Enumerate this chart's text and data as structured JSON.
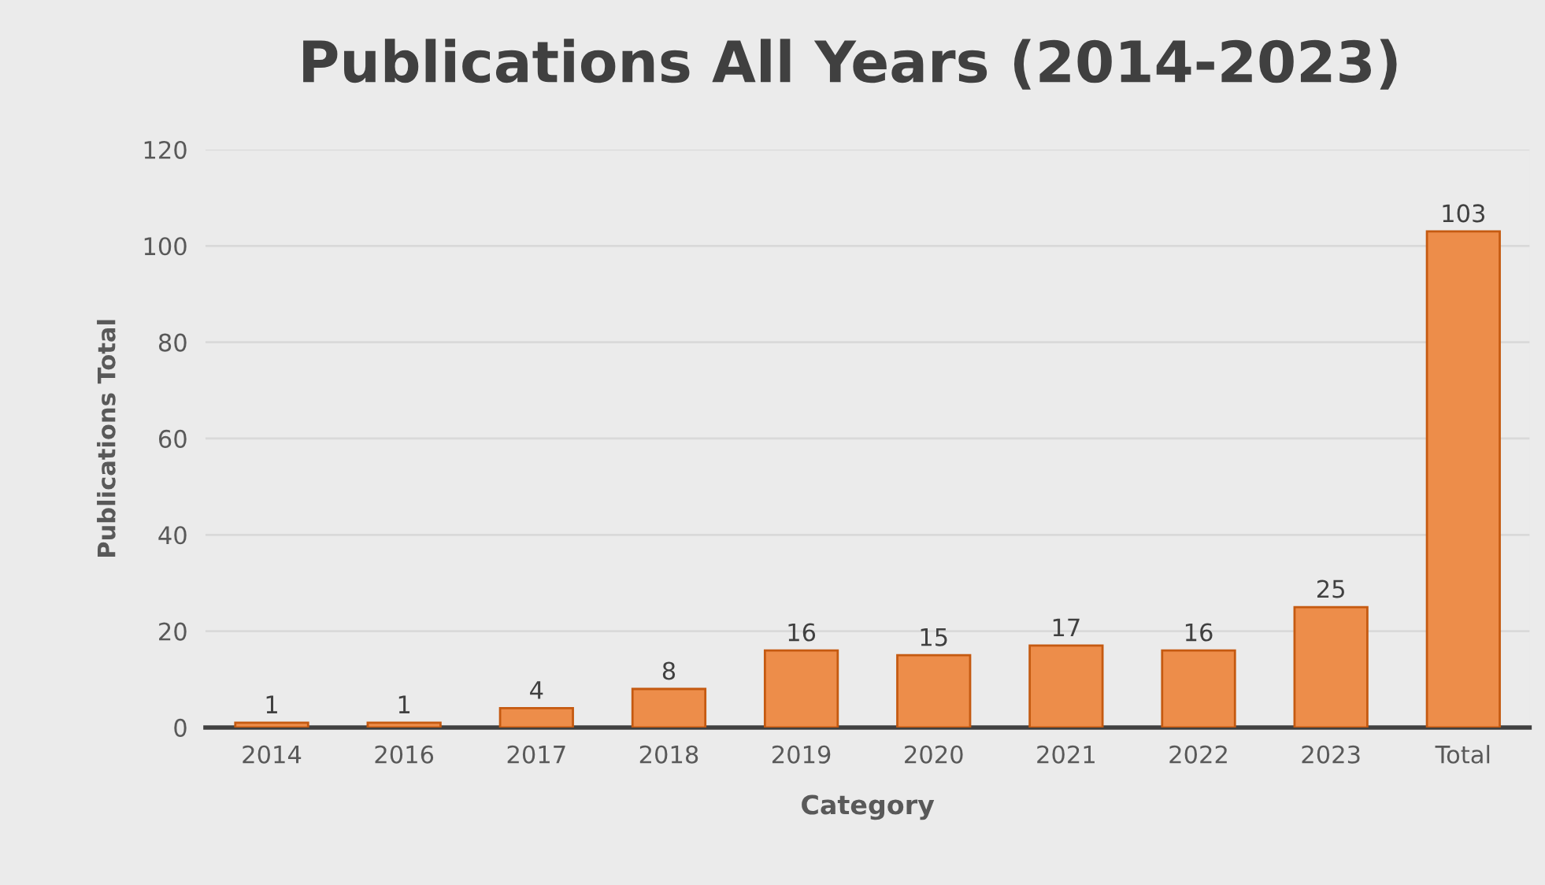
{
  "chart_data": {
    "type": "bar",
    "title": "Publications All Years (2014-2023)",
    "xlabel": "Category",
    "ylabel": "Publications Total",
    "categories": [
      "2014",
      "2016",
      "2017",
      "2018",
      "2019",
      "2020",
      "2021",
      "2022",
      "2023",
      "Total"
    ],
    "values": [
      1,
      1,
      4,
      8,
      16,
      15,
      17,
      16,
      25,
      103
    ],
    "color": "#ed8d4a",
    "ylim": [
      0,
      120
    ],
    "yticks": [
      0,
      20,
      40,
      60,
      80,
      100,
      120
    ],
    "grid": "y",
    "data_labels": true
  }
}
